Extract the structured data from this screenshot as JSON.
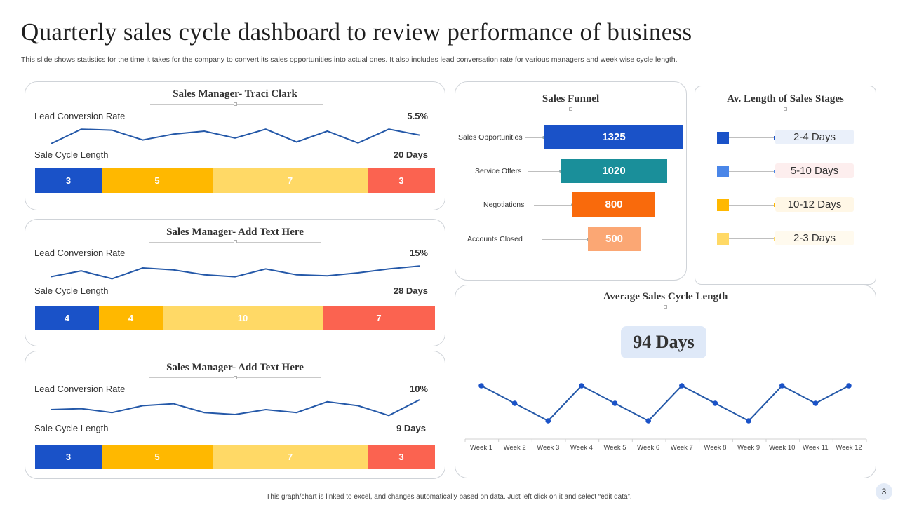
{
  "page": {
    "title": "Quarterly sales cycle dashboard to review performance of business",
    "subtitle": "This slide shows statistics for the time it takes for the company to convert its sales opportunities into actual ones. It also includes lead conversation rate for various managers and week wise cycle length.",
    "footer": "This graph/chart is linked to excel, and changes automatically based on data. Just left click on it and select “edit data”.",
    "page_number": "3"
  },
  "colors": {
    "blue_dark": "#1a52c8",
    "yellow": "#ffb800",
    "yellow_light": "#ffd966",
    "red": "#fb6350",
    "teal": "#1a8f9a",
    "orange": "#f96a0c",
    "peach": "#fba774",
    "blue_light": "#4a86e8",
    "line": "#2458a8"
  },
  "managers": [
    {
      "title": "Sales Manager- Traci  Clark",
      "lead_label": "Lead Conversion  Rate",
      "lead_value": "5.5%",
      "cycle_label": "Sale Cycle Length",
      "cycle_value": "20 Days",
      "segments": [
        "3",
        "5",
        "7",
        "3"
      ]
    },
    {
      "title": "Sales Manager- Add  Text Here",
      "lead_label": "Lead Conversion  Rate",
      "lead_value": "15%",
      "cycle_label": "Sale Cycle Length",
      "cycle_value": "28 Days",
      "segments": [
        "4",
        "4",
        "10",
        "7"
      ]
    },
    {
      "title": "Sales Manager- Add  Text Here",
      "lead_label": "Lead Conversion  Rate",
      "lead_value": "10%",
      "cycle_label": "Sale Cycle Length",
      "cycle_value": "9 Days",
      "segments": [
        "3",
        "5",
        "7",
        "3"
      ]
    }
  ],
  "funnel": {
    "title": "Sales Funnel",
    "stages": [
      {
        "label": "Sales Opportunities",
        "value": "1325"
      },
      {
        "label": "Service Offers",
        "value": "1020"
      },
      {
        "label": "Negotiations",
        "value": "800"
      },
      {
        "label": "Accounts Closed",
        "value": "500"
      }
    ]
  },
  "stages": {
    "title": "Av. Length  of Sales Stages",
    "items": [
      {
        "label": "2-4 Days",
        "color": "#1a52c8"
      },
      {
        "label": "5-10 Days",
        "color": "#4a86e8"
      },
      {
        "label": "10-12 Days",
        "color": "#ffb800"
      },
      {
        "label": "2-3 Days",
        "color": "#ffd966"
      }
    ]
  },
  "avg_cycle": {
    "title": "Average Sales Cycle Length",
    "value": "94 Days"
  },
  "chart_data": [
    {
      "type": "line",
      "name": "manager-1-lead-conversion-sparkline",
      "x": [
        1,
        2,
        3,
        4,
        5,
        6,
        7,
        8,
        9,
        10,
        11,
        12,
        13
      ],
      "values": [
        0.1,
        0.85,
        0.8,
        0.3,
        0.6,
        0.75,
        0.4,
        0.85,
        0.2,
        0.75,
        0.15,
        0.85,
        0.55
      ]
    },
    {
      "type": "line",
      "name": "manager-2-lead-conversion-sparkline",
      "x": [
        1,
        2,
        3,
        4,
        5,
        6,
        7,
        8,
        9,
        10,
        11,
        12,
        13
      ],
      "values": [
        0.3,
        0.6,
        0.2,
        0.75,
        0.65,
        0.4,
        0.3,
        0.7,
        0.4,
        0.35,
        0.5,
        0.7,
        0.85
      ]
    },
    {
      "type": "line",
      "name": "manager-3-lead-conversion-sparkline",
      "x": [
        1,
        2,
        3,
        4,
        5,
        6,
        7,
        8,
        9,
        10,
        11,
        12,
        13
      ],
      "values": [
        0.5,
        0.55,
        0.35,
        0.7,
        0.8,
        0.35,
        0.25,
        0.5,
        0.35,
        0.9,
        0.7,
        0.2,
        1.0
      ]
    },
    {
      "type": "bar",
      "name": "sales-funnel",
      "categories": [
        "Sales Opportunities",
        "Service Offers",
        "Negotiations",
        "Accounts Closed"
      ],
      "values": [
        1325,
        1020,
        800,
        500
      ]
    },
    {
      "type": "line",
      "name": "average-sales-cycle-length",
      "categories": [
        "Week 1",
        "Week 2",
        "Week 3",
        "Week 4",
        "Week 5",
        "Week 6",
        "Week 7",
        "Week 8",
        "Week 9",
        "Week 10",
        "Week 11",
        "Week 12"
      ],
      "values": [
        3,
        2,
        1,
        3,
        2,
        1,
        3,
        2,
        1,
        3,
        2,
        3
      ],
      "ylim": [
        0,
        4
      ]
    }
  ]
}
